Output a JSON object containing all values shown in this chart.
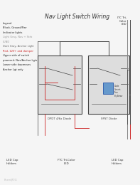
{
  "bg_color": "#f5f5f5",
  "title": "Nav Light Switch Wiring",
  "legend_lines": [
    {
      "text": "Legend",
      "color": "#222222"
    },
    {
      "text": "Black- Ground/Pwr",
      "color": "#222222"
    },
    {
      "text": "Indicator lights",
      "color": "#222222"
    },
    {
      "text": "Light Gray- Nav + Strb",
      "color": "#999999"
    },
    {
      "text": "LUND",
      "color": "#999999"
    },
    {
      "text": "Dark Gray- Anchor Light",
      "color": "#666666"
    },
    {
      "text": "Red- 12V+ and damper",
      "color": "#cc2222"
    },
    {
      "text": "Upper side of switch",
      "color": "#222222"
    },
    {
      "text": "powered- Nav/Anchor Lgts",
      "color": "#222222"
    },
    {
      "text": "Lower side depresses",
      "color": "#222222"
    },
    {
      "text": "Anchor Lgt only",
      "color": "#222222"
    }
  ],
  "switch1_label": "DPDT 4/6x Diode",
  "switch2_label": "SPST Diode",
  "led1_label": "FTC Tri-Color\nLED",
  "itc_label": "ITC Tri-\nColor\nLED",
  "led_cap1_label": "LED Cap\nHolders",
  "led_cap2_label": "LED Cap\nHolders",
  "watermark": "PhrasedJFO11"
}
